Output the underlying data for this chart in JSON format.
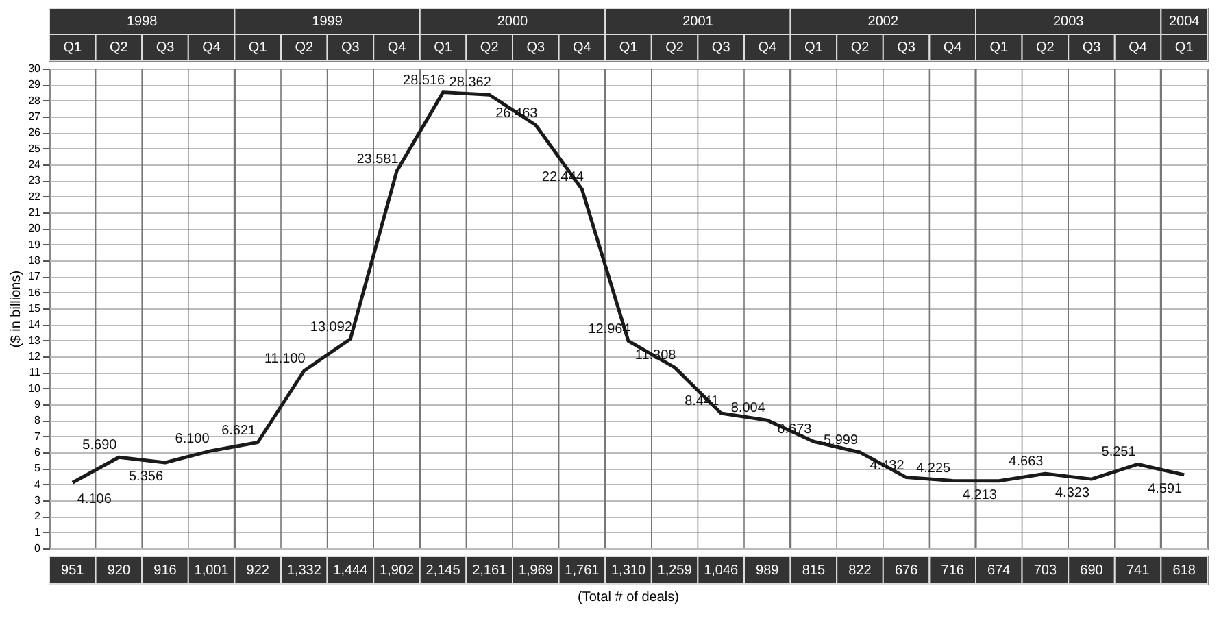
{
  "chart_data": {
    "type": "line",
    "ylabel": "($ in billions)",
    "xlabel": "(Total # of deals)",
    "categories": [
      "Q1",
      "Q2",
      "Q3",
      "Q4",
      "Q1",
      "Q2",
      "Q3",
      "Q4",
      "Q1",
      "Q2",
      "Q3",
      "Q4",
      "Q1",
      "Q2",
      "Q3",
      "Q4",
      "Q1",
      "Q2",
      "Q3",
      "Q4",
      "Q1",
      "Q2",
      "Q3",
      "Q4",
      "Q1"
    ],
    "series": [
      {
        "color": "#1a1a1a",
        "values": [
          4.106,
          5.69,
          5.356,
          6.1,
          6.621,
          11.1,
          13.092,
          23.581,
          28.516,
          28.362,
          26.463,
          22.444,
          12.964,
          11.308,
          8.441,
          8.004,
          6.673,
          5.999,
          4.432,
          4.225,
          4.213,
          4.663,
          4.323,
          5.251,
          4.591
        ],
        "value_labels": [
          "4.106",
          "5.690",
          "5.356",
          "6.100",
          "6.621",
          "11.100",
          "13.092",
          "23.581",
          "28.516",
          "28.362",
          "26.463",
          "22.444",
          "12.964",
          "11.308",
          "8.441",
          "8.004",
          "6.673",
          "5.999",
          "4.432",
          "4.225",
          "4.213",
          "4.663",
          "4.323",
          "5.251",
          "4.591"
        ]
      }
    ],
    "annotations": [
      "1998",
      "1999",
      "2000",
      "2001",
      "2002",
      "2003",
      "2004",
      "951",
      "920",
      "916",
      "1,001",
      "922",
      "1,332",
      "1,444",
      "1,902",
      "2,145",
      "2,161",
      "1,969",
      "1,761",
      "1,310",
      "1,259",
      "1,046",
      "989",
      "815",
      "822",
      "676",
      "716",
      "674",
      "703",
      "690",
      "741",
      "618"
    ],
    "ylim": [
      0,
      30
    ],
    "yticks": [
      0,
      1,
      2,
      3,
      4,
      5,
      6,
      7,
      8,
      9,
      10,
      11,
      12,
      13,
      14,
      15,
      16,
      17,
      18,
      19,
      20,
      21,
      22,
      23,
      24,
      25,
      26,
      27,
      28,
      29,
      30
    ],
    "grid": true,
    "marker": "none",
    "line_style": "solid"
  }
}
